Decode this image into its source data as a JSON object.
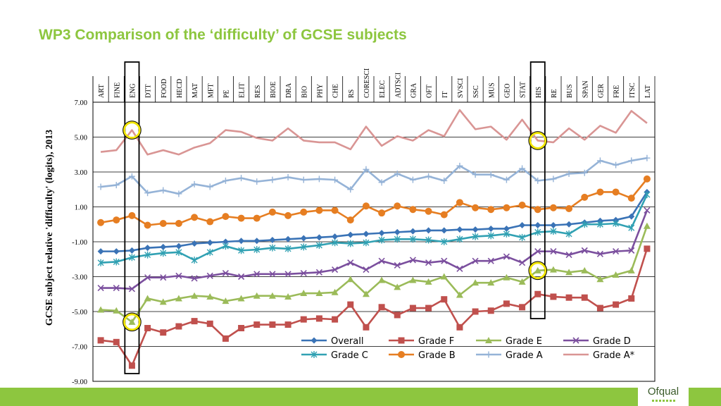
{
  "slide": {
    "title": "WP3  Comparison of the ‘difficulty’ of GCSE subjects",
    "logo_text": "Ofqual"
  },
  "colors": {
    "title": "#8dc63f",
    "footer": "#8dc63f",
    "highlight_circle": "#f2e600"
  },
  "chart_data": {
    "type": "line",
    "title": "",
    "ylabel": "GCSE subject relative 'difficulty' (logits), 2013",
    "xlabel": "",
    "ylim": [
      -9,
      7
    ],
    "yticks": [
      -9,
      -7,
      -5,
      -3,
      -1,
      1,
      3,
      5,
      7
    ],
    "ytick_labels": [
      "-9.00",
      "-7.00",
      "-5.00",
      "-3.00",
      "-1.00",
      "1.00",
      "3.00",
      "5.00",
      "7.00"
    ],
    "grid": true,
    "legend_position": "bottom-right",
    "categories": [
      "ART",
      "FINE",
      "ENG",
      "DTT",
      "FOOD",
      "HECD",
      "MAT",
      "MFT",
      "PE",
      "ELIT",
      "RES",
      "BIOE",
      "DRA",
      "BIO",
      "PHY",
      "CHE",
      "RS",
      "CORESCI",
      "ELEC",
      "ADTSCI",
      "GRA",
      "OFT",
      "IT",
      "SVSCI",
      "SSC",
      "MUS",
      "GEO",
      "STAT",
      "HIS",
      "RE",
      "BUS",
      "SPAN",
      "GER",
      "FRE",
      "ITSC",
      "LAT"
    ],
    "highlighted_categories": [
      "ENG",
      "HIS"
    ],
    "series": [
      {
        "name": "Grade A*",
        "color": "#d99594",
        "marker": "none",
        "values": [
          4.15,
          4.25,
          5.4,
          4.0,
          4.25,
          4.0,
          4.4,
          4.65,
          5.4,
          5.3,
          4.95,
          4.8,
          5.5,
          4.8,
          4.7,
          4.7,
          4.3,
          5.6,
          4.5,
          5.05,
          4.8,
          5.4,
          5.05,
          6.55,
          5.45,
          5.6,
          4.85,
          6.0,
          4.8,
          4.7,
          5.5,
          4.85,
          5.65,
          5.25,
          6.5,
          5.8
        ]
      },
      {
        "name": "Grade A",
        "color": "#95b3d7",
        "marker": "plus",
        "values": [
          2.15,
          2.25,
          2.75,
          1.8,
          1.95,
          1.75,
          2.3,
          2.15,
          2.5,
          2.65,
          2.45,
          2.55,
          2.7,
          2.55,
          2.6,
          2.55,
          2.0,
          3.15,
          2.4,
          2.9,
          2.55,
          2.75,
          2.5,
          3.35,
          2.85,
          2.85,
          2.55,
          3.2,
          2.5,
          2.6,
          2.9,
          2.95,
          3.65,
          3.4,
          3.65,
          3.8
        ]
      },
      {
        "name": "Grade B",
        "color": "#e67e22",
        "marker": "circle",
        "values": [
          0.1,
          0.25,
          0.5,
          -0.05,
          0.05,
          0.05,
          0.4,
          0.15,
          0.45,
          0.35,
          0.35,
          0.7,
          0.5,
          0.7,
          0.8,
          0.8,
          0.25,
          1.05,
          0.65,
          1.05,
          0.85,
          0.75,
          0.55,
          1.25,
          0.95,
          0.85,
          0.95,
          1.1,
          0.85,
          0.95,
          0.9,
          1.55,
          1.85,
          1.85,
          1.5,
          2.6
        ]
      },
      {
        "name": "Overall",
        "color": "#3a73b6",
        "marker": "diamond",
        "values": [
          -1.55,
          -1.55,
          -1.5,
          -1.35,
          -1.3,
          -1.25,
          -1.1,
          -1.05,
          -1.0,
          -0.95,
          -0.95,
          -0.9,
          -0.85,
          -0.8,
          -0.75,
          -0.7,
          -0.6,
          -0.55,
          -0.5,
          -0.45,
          -0.4,
          -0.35,
          -0.35,
          -0.3,
          -0.3,
          -0.25,
          -0.25,
          -0.05,
          -0.05,
          -0.05,
          0.0,
          0.1,
          0.2,
          0.25,
          0.45,
          1.85
        ]
      },
      {
        "name": "Grade C",
        "color": "#31a1b3",
        "marker": "asterisk",
        "values": [
          -2.2,
          -2.15,
          -1.9,
          -1.75,
          -1.65,
          -1.6,
          -2.05,
          -1.6,
          -1.25,
          -1.5,
          -1.45,
          -1.35,
          -1.4,
          -1.3,
          -1.2,
          -1.05,
          -1.1,
          -1.05,
          -0.9,
          -0.85,
          -0.85,
          -0.9,
          -1.0,
          -0.85,
          -0.7,
          -0.65,
          -0.55,
          -0.75,
          -0.45,
          -0.4,
          -0.55,
          0.0,
          0.0,
          0.05,
          -0.2,
          1.7
        ]
      },
      {
        "name": "Grade D",
        "color": "#7b4f9e",
        "marker": "x",
        "values": [
          -3.65,
          -3.65,
          -3.7,
          -3.05,
          -3.05,
          -2.95,
          -3.1,
          -2.95,
          -2.8,
          -3.0,
          -2.85,
          -2.85,
          -2.85,
          -2.8,
          -2.75,
          -2.6,
          -2.2,
          -2.6,
          -2.1,
          -2.35,
          -2.05,
          -2.2,
          -2.1,
          -2.55,
          -2.1,
          -2.1,
          -1.85,
          -2.2,
          -1.55,
          -1.55,
          -1.75,
          -1.5,
          -1.7,
          -1.55,
          -1.5,
          0.8
        ]
      },
      {
        "name": "Grade E",
        "color": "#9bbb59",
        "marker": "triangle",
        "values": [
          -4.9,
          -4.95,
          -5.6,
          -4.25,
          -4.45,
          -4.25,
          -4.1,
          -4.15,
          -4.4,
          -4.25,
          -4.1,
          -4.1,
          -4.15,
          -3.95,
          -3.95,
          -3.9,
          -3.15,
          -4.0,
          -3.2,
          -3.6,
          -3.2,
          -3.3,
          -3.0,
          -4.05,
          -3.35,
          -3.35,
          -3.05,
          -3.3,
          -2.65,
          -2.6,
          -2.75,
          -2.65,
          -3.15,
          -2.9,
          -2.65,
          -0.1
        ]
      },
      {
        "name": "Grade F",
        "color": "#c0504d",
        "marker": "square",
        "values": [
          -6.65,
          -6.75,
          -8.1,
          -5.95,
          -6.2,
          -5.85,
          -5.55,
          -5.7,
          -6.55,
          -5.95,
          -5.75,
          -5.75,
          -5.75,
          -5.45,
          -5.4,
          -5.45,
          -4.6,
          -5.9,
          -4.75,
          -5.2,
          -4.8,
          -4.8,
          -4.3,
          -5.9,
          -5.0,
          -4.95,
          -4.55,
          -4.75,
          -4.0,
          -4.15,
          -4.2,
          -4.2,
          -4.8,
          -4.6,
          -4.25,
          -1.4
        ]
      }
    ],
    "legend": [
      "Overall",
      "Grade F",
      "Grade E",
      "Grade D",
      "Grade C",
      "Grade B",
      "Grade A",
      "Grade A*"
    ]
  }
}
